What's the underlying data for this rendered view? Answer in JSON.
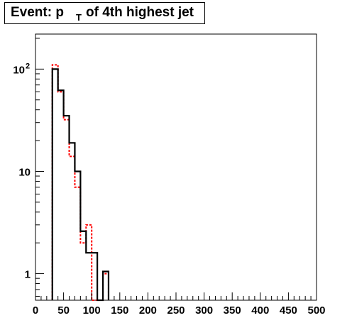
{
  "title": {
    "prefix": "Event: p",
    "subscript": "T",
    "suffix": " of 4th highest jet"
  },
  "chart_data": {
    "type": "histogram",
    "title": "Event: p_T of 4th highest jet",
    "xlabel": "",
    "ylabel": "",
    "xlim": [
      0,
      500
    ],
    "ylim": [
      0.55,
      220
    ],
    "yscale": "log",
    "bin_width": 10,
    "x_ticks": [
      "0",
      "50",
      "100",
      "150",
      "200",
      "250",
      "300",
      "350",
      "400",
      "450",
      "500"
    ],
    "y_ticks": [
      {
        "value": 1,
        "base": "1",
        "exp": ""
      },
      {
        "value": 10,
        "base": "10",
        "exp": ""
      },
      {
        "value": 100,
        "base": "10",
        "exp": "2"
      }
    ],
    "series": [
      {
        "style": "solid",
        "color": "#000000",
        "bin_edges": [
          30,
          40,
          50,
          60,
          70,
          80,
          90,
          100,
          110,
          120,
          130
        ],
        "values": [
          100,
          62,
          35,
          19,
          10,
          2.6,
          1.6,
          1.6,
          0,
          1.05
        ]
      },
      {
        "style": "dashed",
        "color": "#ff0000",
        "bin_edges": [
          30,
          40,
          50,
          60,
          70,
          80,
          90,
          100,
          110,
          120,
          130
        ],
        "values": [
          110,
          60,
          32,
          14,
          7,
          2.0,
          3.0,
          0,
          0,
          1.0
        ]
      }
    ],
    "grid": false,
    "legend": "none"
  }
}
